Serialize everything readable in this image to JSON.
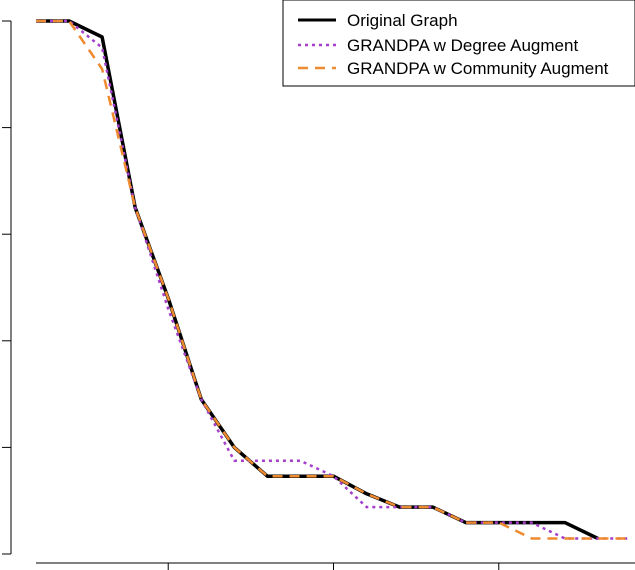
{
  "chart_data": {
    "type": "line",
    "title": "",
    "xlabel": "",
    "ylabel": "",
    "xlim": [
      0,
      18
    ],
    "ylim": [
      0,
      1
    ],
    "x_ticks": [
      4,
      9,
      14
    ],
    "y_ticks": [
      0,
      0.2,
      0.4,
      0.6,
      0.8,
      1.0
    ],
    "legend": {
      "position": "top-right"
    },
    "series": [
      {
        "name": "Original Graph",
        "color": "#000000",
        "dash": "solid",
        "x": [
          0,
          1,
          2,
          3,
          4,
          5,
          6,
          7,
          8,
          9,
          10,
          11,
          12,
          13,
          14,
          15,
          16,
          17
        ],
        "y": [
          1.0,
          1.0,
          0.97,
          0.65,
          0.48,
          0.29,
          0.2,
          0.146,
          0.146,
          0.146,
          0.113,
          0.088,
          0.088,
          0.059,
          0.059,
          0.059,
          0.059,
          0.029
        ]
      },
      {
        "name": "GRANDPA w Degree Augment",
        "color": "#a53ecb",
        "dash": "dotted",
        "x": [
          0,
          1,
          2,
          3,
          4,
          5,
          6,
          7,
          8,
          9,
          10,
          11,
          12,
          13,
          14,
          15,
          16,
          17,
          18
        ],
        "y": [
          1.0,
          1.0,
          0.95,
          0.65,
          0.46,
          0.29,
          0.175,
          0.175,
          0.175,
          0.146,
          0.088,
          0.088,
          0.088,
          0.059,
          0.059,
          0.059,
          0.029,
          0.029,
          0.029
        ]
      },
      {
        "name": "GRANDPA w Community Augment",
        "color": "#ee8a2f",
        "dash": "dashed",
        "x": [
          0,
          1,
          2,
          3,
          4,
          5,
          6,
          7,
          8,
          9,
          10,
          11,
          12,
          13,
          14,
          15,
          16,
          17,
          18
        ],
        "y": [
          1.0,
          1.0,
          0.91,
          0.65,
          0.48,
          0.29,
          0.2,
          0.146,
          0.146,
          0.146,
          0.113,
          0.088,
          0.088,
          0.059,
          0.059,
          0.029,
          0.029,
          0.029,
          0.029
        ]
      }
    ]
  }
}
